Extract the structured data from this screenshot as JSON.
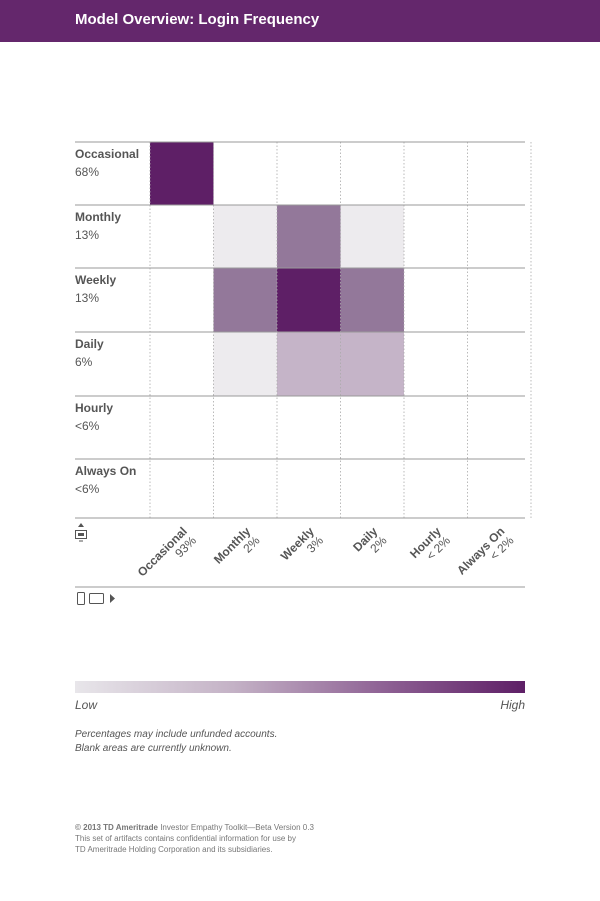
{
  "header": {
    "title": "Model Overview: Login Frequency"
  },
  "chart_data": {
    "type": "heatmap",
    "title": "Model Overview: Login Frequency",
    "rows": [
      {
        "name": "Occasional",
        "pct": "68%"
      },
      {
        "name": "Monthly",
        "pct": "13%"
      },
      {
        "name": "Weekly",
        "pct": "13%"
      },
      {
        "name": "Daily",
        "pct": "6%"
      },
      {
        "name": "Hourly",
        "pct": "<6%"
      },
      {
        "name": "Always On",
        "pct": "<6%"
      }
    ],
    "columns": [
      {
        "name": "Occasional",
        "pct": "93%"
      },
      {
        "name": "Monthly",
        "pct": "2%"
      },
      {
        "name": "Weekly",
        "pct": "3%"
      },
      {
        "name": "Daily",
        "pct": "2%"
      },
      {
        "name": "Hourly",
        "pct": "< 2%"
      },
      {
        "name": "Always On",
        "pct": "< 2%"
      }
    ],
    "cells": [
      {
        "row": 0,
        "col": 0,
        "level": 1.0
      },
      {
        "row": 1,
        "col": 1,
        "level": 0.15
      },
      {
        "row": 1,
        "col": 2,
        "level": 0.6
      },
      {
        "row": 1,
        "col": 3,
        "level": 0.15
      },
      {
        "row": 2,
        "col": 1,
        "level": 0.6
      },
      {
        "row": 2,
        "col": 2,
        "level": 1.0
      },
      {
        "row": 2,
        "col": 3,
        "level": 0.6
      },
      {
        "row": 3,
        "col": 1,
        "level": 0.15
      },
      {
        "row": 3,
        "col": 2,
        "level": 0.35
      },
      {
        "row": 3,
        "col": 3,
        "level": 0.35
      }
    ],
    "scale_colors": {
      "high": "#5e1f66",
      "mid": "#93789a",
      "light": "#c5b4c8",
      "lightest": "#edebee"
    },
    "grid": true,
    "legend": {
      "low_label": "Low",
      "high_label": "High",
      "placement": "bottom"
    }
  },
  "notes": [
    "Percentages may include unfunded accounts.",
    "Blank areas are currently unknown."
  ],
  "footer": {
    "brand": "© 2013 TD Ameritrade",
    "line1_rest": " Investor Empathy Toolkit—Beta Version 0.3",
    "line2": "This set of artifacts contains confidential information for use by",
    "line3": "TD Ameritrade Holding Corporation and its subsidiaries."
  },
  "icons": {
    "row_axis": "desktop-icon",
    "col_axis": "mobile-tablet-icon"
  }
}
